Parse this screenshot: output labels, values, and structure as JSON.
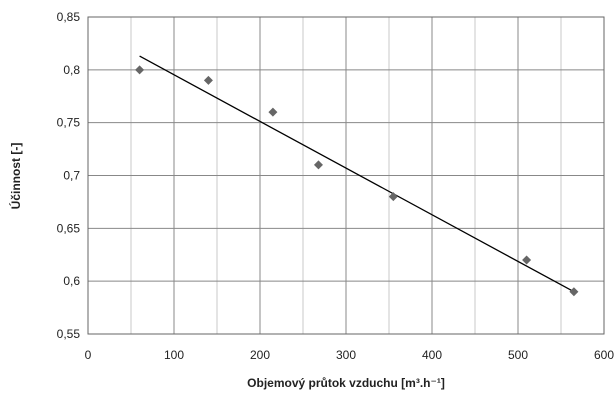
{
  "chart_data": {
    "type": "scatter",
    "xlabel": "Objemový průtok vzduchu [m³.h⁻¹]",
    "ylabel": "Účinnost [-]",
    "xlim": [
      0,
      600
    ],
    "ylim": [
      0.55,
      0.85
    ],
    "x_ticks": [
      "0",
      "100",
      "200",
      "300",
      "400",
      "500",
      "600"
    ],
    "y_ticks": [
      "0,55",
      "0,6",
      "0,65",
      "0,7",
      "0,75",
      "0,8",
      "0,85"
    ],
    "grid": true,
    "legend": "none",
    "series": [
      {
        "marker": "diamond",
        "color": "#666666",
        "points": [
          {
            "x": 60,
            "y": 0.8
          },
          {
            "x": 140,
            "y": 0.79
          },
          {
            "x": 215,
            "y": 0.76
          },
          {
            "x": 268,
            "y": 0.71
          },
          {
            "x": 355,
            "y": 0.68
          },
          {
            "x": 510,
            "y": 0.62
          },
          {
            "x": 565,
            "y": 0.59
          }
        ]
      }
    ],
    "trendline": {
      "color": "#000000",
      "x": [
        60,
        565
      ],
      "y": [
        0.813,
        0.59
      ]
    },
    "colors": {
      "grid": "#888888",
      "axis": "#666666"
    }
  }
}
